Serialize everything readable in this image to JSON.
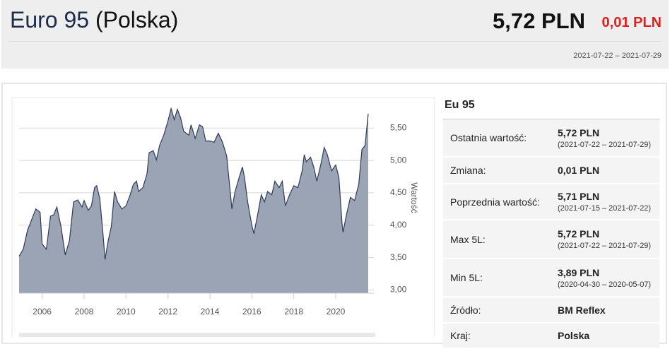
{
  "header": {
    "fuel": "Euro 95",
    "country": "(Polska)",
    "price": "5,72 PLN",
    "change": "0,01 PLN",
    "period": "2021-07-22 – 2021-07-29"
  },
  "table": {
    "title": "Eu 95",
    "rows": [
      {
        "label": "Ostatnia wartość:",
        "value": "5,72 PLN",
        "date": "(2021-07-22 – 2021-07-29)"
      },
      {
        "label": "Zmiana:",
        "value": "0,01 PLN"
      },
      {
        "label": "Poprzednia wartość:",
        "value": "5,71 PLN",
        "date": "(2021-07-15 – 2021-07-22)"
      },
      {
        "label": "Max 5L:",
        "value": "5,72 PLN",
        "date": "(2021-07-22 – 2021-07-29)"
      },
      {
        "label": "Min 5L:",
        "value": "3,89 PLN",
        "date": "(2020-04-30 – 2020-05-07)"
      },
      {
        "label": "Źródło:",
        "value": "BM Reflex"
      },
      {
        "label": "Kraj:",
        "value": "Polska"
      }
    ]
  },
  "chart_data": {
    "type": "area",
    "y_label": "Wartość",
    "color": "#9ba4b4",
    "line_color": "#2f3b57",
    "grid": true,
    "x": [
      2004.9,
      2005.1,
      2005.3,
      2005.7,
      2005.9,
      2006.0,
      2006.2,
      2006.4,
      2006.55,
      2006.7,
      2006.9,
      2007.1,
      2007.3,
      2007.5,
      2007.7,
      2007.9,
      2008.0,
      2008.2,
      2008.35,
      2008.5,
      2008.6,
      2008.75,
      2008.9,
      2009.0,
      2009.15,
      2009.3,
      2009.45,
      2009.6,
      2009.8,
      2010.0,
      2010.2,
      2010.35,
      2010.5,
      2010.6,
      2010.8,
      2011.0,
      2011.1,
      2011.3,
      2011.45,
      2011.6,
      2011.8,
      2012.0,
      2012.15,
      2012.3,
      2012.45,
      2012.6,
      2012.75,
      2013.0,
      2013.1,
      2013.3,
      2013.5,
      2013.65,
      2013.8,
      2014.0,
      2014.2,
      2014.4,
      2014.6,
      2014.8,
      2014.95,
      2015.05,
      2015.2,
      2015.4,
      2015.55,
      2015.65,
      2015.8,
      2016.0,
      2016.1,
      2016.3,
      2016.45,
      2016.6,
      2016.75,
      2016.95,
      2017.1,
      2017.3,
      2017.45,
      2017.6,
      2017.8,
      2018.0,
      2018.2,
      2018.4,
      2018.5,
      2018.6,
      2018.8,
      2018.95,
      2019.1,
      2019.3,
      2019.45,
      2019.6,
      2019.8,
      2020.0,
      2020.15,
      2020.3,
      2020.35,
      2020.5,
      2020.7,
      2020.9,
      2021.1,
      2021.25,
      2021.4,
      2021.55
    ],
    "values": [
      3.52,
      3.63,
      3.92,
      4.25,
      4.2,
      3.71,
      3.63,
      4.14,
      4.16,
      4.28,
      3.98,
      3.54,
      3.76,
      4.36,
      4.39,
      4.28,
      4.38,
      4.23,
      4.3,
      4.58,
      4.61,
      4.41,
      3.87,
      3.47,
      3.76,
      3.98,
      4.52,
      4.36,
      4.25,
      4.3,
      4.47,
      4.63,
      4.68,
      4.52,
      4.58,
      4.79,
      5.12,
      5.15,
      5.01,
      5.23,
      5.39,
      5.61,
      5.8,
      5.63,
      5.79,
      5.66,
      5.45,
      5.39,
      5.55,
      5.34,
      5.55,
      5.52,
      5.3,
      5.3,
      5.28,
      5.42,
      5.28,
      5.07,
      4.58,
      4.25,
      4.52,
      4.74,
      4.9,
      4.74,
      4.36,
      4.0,
      3.87,
      4.2,
      4.47,
      4.36,
      4.52,
      4.47,
      4.68,
      4.58,
      4.68,
      4.3,
      4.47,
      4.61,
      4.58,
      4.84,
      5.09,
      4.98,
      5.05,
      4.9,
      4.68,
      4.95,
      5.2,
      5.09,
      4.84,
      4.93,
      4.74,
      4.03,
      3.89,
      4.14,
      4.43,
      4.38,
      4.63,
      5.17,
      5.23,
      5.72
    ],
    "xlim": [
      2004.9,
      2021.55
    ],
    "ylim": [
      2.95,
      5.95
    ],
    "xticks": [
      2006,
      2008,
      2010,
      2012,
      2014,
      2016,
      2018,
      2020
    ],
    "yticks": [
      {
        "value": 3.0,
        "label": "3,00"
      },
      {
        "value": 3.5,
        "label": "3,50"
      },
      {
        "value": 4.0,
        "label": "4,00"
      },
      {
        "value": 4.5,
        "label": "4,50"
      },
      {
        "value": 5.0,
        "label": "5,00"
      },
      {
        "value": 5.5,
        "label": "5,50"
      }
    ]
  }
}
